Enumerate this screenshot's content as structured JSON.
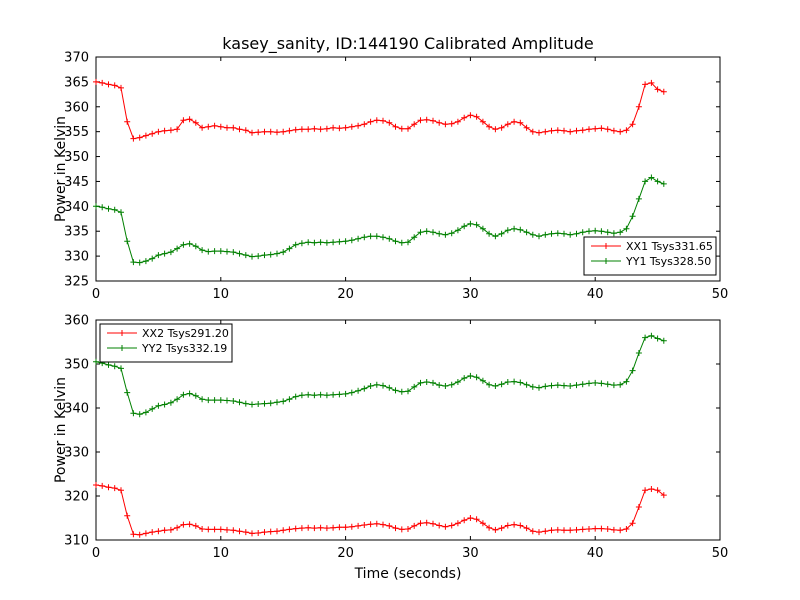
{
  "figure": {
    "title": "kasey_sanity, ID:144190 Calibrated Amplitude",
    "xlabel": "Time (seconds)",
    "background": "#ffffff",
    "axis_color": "#000000"
  },
  "chart_data": [
    {
      "type": "line",
      "ylabel": "Power in Kelvin",
      "xlim": [
        0,
        50
      ],
      "ylim": [
        325,
        370
      ],
      "xticks": [
        0,
        10,
        20,
        30,
        40,
        50
      ],
      "yticks": [
        325,
        330,
        335,
        340,
        345,
        350,
        355,
        360,
        365,
        370
      ],
      "x_start": 0,
      "x_step": 0.5,
      "marker": "+",
      "grid": false,
      "legend_position": "lower-right",
      "series": [
        {
          "name": "XX1 Tsys331.65",
          "color": "#ff0000",
          "values": [
            365.0,
            364.8,
            364.5,
            364.3,
            363.8,
            357.0,
            353.6,
            353.8,
            354.2,
            354.6,
            355.0,
            355.2,
            355.3,
            355.5,
            357.3,
            357.5,
            356.8,
            355.8,
            356.0,
            356.2,
            356.0,
            355.8,
            355.8,
            355.5,
            355.3,
            354.8,
            354.9,
            355.0,
            355.0,
            354.9,
            355.0,
            355.2,
            355.4,
            355.5,
            355.5,
            355.6,
            355.5,
            355.6,
            355.8,
            355.7,
            355.8,
            356.0,
            356.2,
            356.5,
            357.0,
            357.3,
            357.2,
            356.8,
            356.0,
            355.6,
            355.6,
            356.5,
            357.3,
            357.4,
            357.2,
            356.8,
            356.5,
            356.6,
            357.0,
            357.8,
            358.3,
            358.0,
            357.0,
            356.0,
            355.5,
            355.8,
            356.5,
            357.0,
            356.8,
            355.8,
            355.0,
            354.8,
            355.0,
            355.2,
            355.3,
            355.2,
            355.0,
            355.2,
            355.3,
            355.5,
            355.6,
            355.7,
            355.5,
            355.2,
            355.0,
            355.3,
            356.5,
            360.0,
            364.5,
            364.8,
            363.5,
            363.0
          ]
        },
        {
          "name": "YY1 Tsys328.50",
          "color": "#008000",
          "values": [
            340.0,
            339.8,
            339.5,
            339.3,
            338.8,
            333.0,
            328.8,
            328.7,
            329.0,
            329.5,
            330.2,
            330.5,
            330.8,
            331.5,
            332.3,
            332.5,
            332.0,
            331.2,
            330.9,
            331.0,
            331.0,
            330.9,
            330.8,
            330.5,
            330.2,
            329.9,
            330.0,
            330.2,
            330.3,
            330.5,
            330.8,
            331.5,
            332.3,
            332.6,
            332.8,
            332.7,
            332.8,
            332.7,
            332.8,
            332.9,
            333.0,
            333.2,
            333.5,
            333.8,
            334.0,
            334.0,
            333.8,
            333.5,
            333.0,
            332.7,
            332.8,
            333.8,
            334.8,
            335.0,
            334.8,
            334.5,
            334.3,
            334.6,
            335.2,
            336.0,
            336.5,
            336.3,
            335.5,
            334.5,
            334.0,
            334.5,
            335.2,
            335.5,
            335.3,
            334.8,
            334.3,
            334.0,
            334.3,
            334.5,
            334.6,
            334.5,
            334.3,
            334.5,
            334.8,
            335.0,
            335.1,
            335.0,
            334.8,
            334.6,
            334.8,
            335.5,
            338.0,
            341.5,
            345.0,
            345.8,
            345.0,
            344.5
          ]
        }
      ]
    },
    {
      "type": "line",
      "ylabel": "Power in Kelvin",
      "xlim": [
        0,
        50
      ],
      "ylim": [
        310,
        360
      ],
      "xticks": [
        0,
        10,
        20,
        30,
        40,
        50
      ],
      "yticks": [
        310,
        320,
        330,
        340,
        350,
        360
      ],
      "x_start": 0,
      "x_step": 0.5,
      "marker": "+",
      "grid": false,
      "legend_position": "upper-left",
      "series": [
        {
          "name": "XX2 Tsys291.20",
          "color": "#ff0000",
          "values": [
            322.5,
            322.3,
            322.0,
            321.8,
            321.3,
            315.5,
            311.3,
            311.2,
            311.5,
            311.8,
            312.0,
            312.2,
            312.3,
            312.8,
            313.5,
            313.6,
            313.2,
            312.5,
            312.4,
            312.4,
            312.4,
            312.3,
            312.2,
            312.0,
            311.8,
            311.5,
            311.6,
            311.8,
            311.9,
            312.0,
            312.2,
            312.4,
            312.6,
            312.7,
            312.8,
            312.7,
            312.8,
            312.7,
            312.8,
            312.9,
            312.9,
            313.0,
            313.2,
            313.4,
            313.6,
            313.7,
            313.5,
            313.2,
            312.7,
            312.4,
            312.5,
            313.2,
            313.8,
            313.9,
            313.7,
            313.3,
            313.0,
            313.3,
            313.8,
            314.5,
            315.0,
            314.7,
            313.8,
            312.8,
            312.3,
            312.7,
            313.3,
            313.5,
            313.3,
            312.7,
            312.0,
            311.8,
            312.0,
            312.2,
            312.3,
            312.2,
            312.2,
            312.3,
            312.4,
            312.5,
            312.6,
            312.6,
            312.5,
            312.3,
            312.2,
            312.5,
            313.8,
            317.5,
            321.3,
            321.6,
            321.3,
            320.2
          ]
        },
        {
          "name": "YY2 Tsys332.19",
          "color": "#008000",
          "values": [
            350.5,
            350.2,
            349.8,
            349.5,
            349.0,
            343.5,
            338.8,
            338.6,
            339.0,
            339.8,
            340.5,
            340.8,
            341.2,
            342.0,
            343.0,
            343.3,
            342.8,
            342.0,
            341.8,
            341.8,
            341.8,
            341.7,
            341.6,
            341.3,
            341.0,
            340.8,
            340.9,
            341.0,
            341.1,
            341.3,
            341.5,
            342.0,
            342.6,
            342.9,
            343.0,
            342.9,
            343.0,
            342.9,
            343.0,
            343.1,
            343.2,
            343.5,
            343.9,
            344.4,
            345.0,
            345.3,
            345.1,
            344.6,
            344.0,
            343.7,
            343.8,
            344.8,
            345.7,
            345.9,
            345.7,
            345.2,
            345.0,
            345.3,
            345.9,
            346.8,
            347.3,
            347.0,
            346.2,
            345.3,
            345.0,
            345.4,
            345.9,
            346.0,
            345.8,
            345.3,
            344.8,
            344.6,
            344.9,
            345.1,
            345.2,
            345.1,
            345.0,
            345.2,
            345.4,
            345.6,
            345.7,
            345.6,
            345.4,
            345.2,
            345.3,
            346.0,
            348.5,
            352.5,
            356.0,
            356.4,
            355.8,
            355.3
          ]
        }
      ]
    }
  ]
}
